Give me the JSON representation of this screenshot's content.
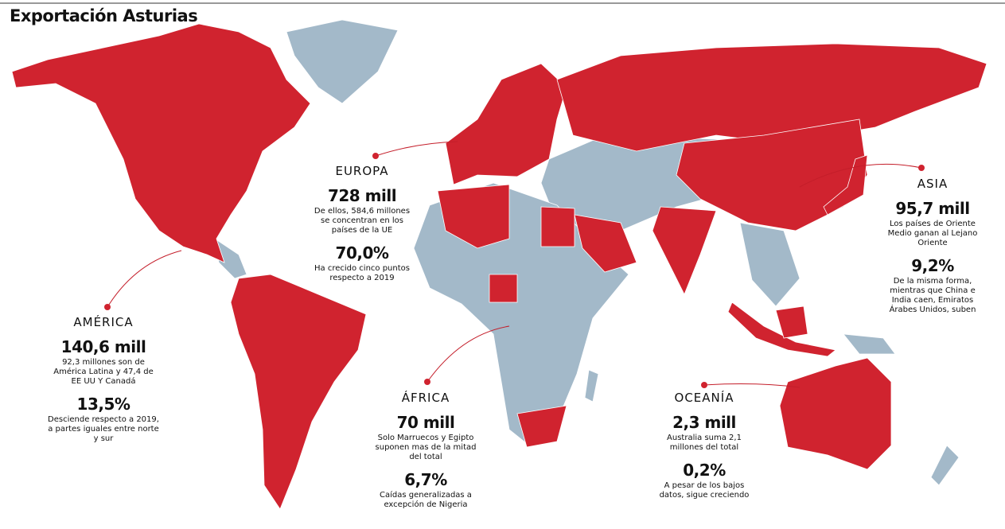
{
  "title": "Exportación Asturias",
  "regions": [
    {
      "name": "AMÉRICA",
      "amount": "140,6 mill",
      "description": "92,3 millones son de América Latina y 47,4 de EE UU Y Canadá",
      "percent": "13,5%",
      "note": "Desciende respecto a 2019, a partes iguales entre norte y sur"
    },
    {
      "name": "EUROPA",
      "amount": "728 mill",
      "description": "De ellos, 584,6 millones se concentran en los países de la UE",
      "percent": "70,0%",
      "note": "Ha crecido cinco puntos respecto a 2019"
    },
    {
      "name": "ÁFRICA",
      "amount": "70 mill",
      "description": "Solo Marruecos y Egipto suponen mas de la mitad del total",
      "percent": "6,7%",
      "note": "Caídas generalizadas a excepción de Nigeria"
    },
    {
      "name": "ASIA",
      "amount": "95,7 mill",
      "description": "Los países de Oriente Medio ganan al Lejano Oriente",
      "percent": "9,2%",
      "note": "De la misma forma, mientras que China e India caen, Emiratos Árabes Unidos, suben"
    },
    {
      "name": "OCEANÍA",
      "amount": "2,3 mill",
      "description": "Australia suma 2,1 millones del total",
      "percent": "0,2%",
      "note": "A pesar de los bajos datos, sigue creciendo"
    }
  ]
}
